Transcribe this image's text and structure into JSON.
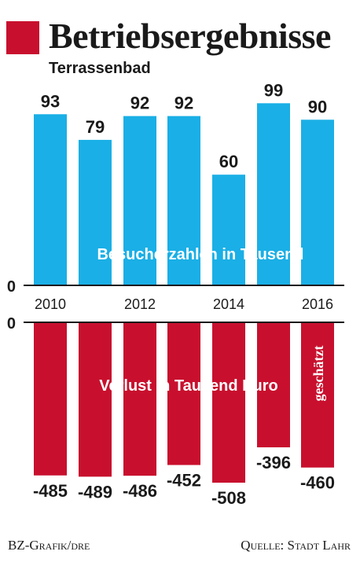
{
  "header": {
    "title": "Betriebsergebnisse",
    "subtitle": "Terrassenbad"
  },
  "footer": {
    "credit": "BZ-Grafik/dre",
    "source": "Quelle: Stadt Lahr"
  },
  "colors": {
    "visitors": "#1aafe6",
    "loss": "#c8102e",
    "title_square": "#c8102e",
    "text": "#1a1a1a"
  },
  "chart_data": [
    {
      "type": "bar",
      "categories": [
        "2010",
        "2011",
        "2012",
        "2013",
        "2014",
        "2015",
        "2016"
      ],
      "x_tick_labels": [
        "2010",
        "",
        "2012",
        "",
        "2014",
        "",
        "2016"
      ],
      "values": [
        93,
        79,
        92,
        92,
        60,
        99,
        90
      ],
      "data_labels": [
        "93",
        "79",
        "92",
        "92",
        "60",
        "99",
        "90"
      ],
      "label": "Besucherzahlen in Tausend",
      "baseline_label": "0",
      "ylim": [
        0,
        100
      ]
    },
    {
      "type": "bar",
      "categories": [
        "2010",
        "2011",
        "2012",
        "2013",
        "2014",
        "2015",
        "2016"
      ],
      "values": [
        -485,
        -489,
        -486,
        -452,
        -508,
        -396,
        -460
      ],
      "data_labels": [
        "-485",
        "-489",
        "-486",
        "-452",
        "-508",
        "-396",
        "-460"
      ],
      "label": "Verlust in Tausend Euro",
      "baseline_label": "0",
      "annotation": "geschätzt",
      "annotation_category": "2016",
      "ylim": [
        -520,
        0
      ]
    }
  ]
}
